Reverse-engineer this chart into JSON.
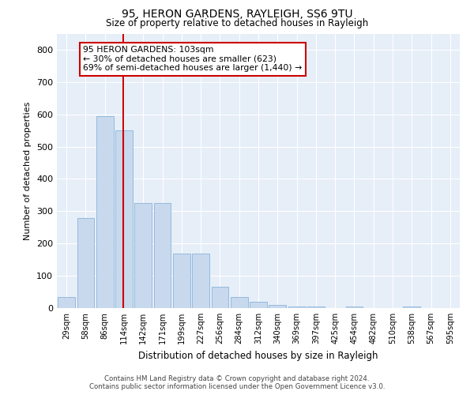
{
  "title1": "95, HERON GARDENS, RAYLEIGH, SS6 9TU",
  "title2": "Size of property relative to detached houses in Rayleigh",
  "xlabel": "Distribution of detached houses by size in Rayleigh",
  "ylabel": "Number of detached properties",
  "bar_color": "#c8d9ee",
  "bar_edge_color": "#8ab4d8",
  "background_color": "#e6eef8",
  "categories": [
    "29sqm",
    "58sqm",
    "86sqm",
    "114sqm",
    "142sqm",
    "171sqm",
    "199sqm",
    "227sqm",
    "256sqm",
    "284sqm",
    "312sqm",
    "340sqm",
    "369sqm",
    "397sqm",
    "425sqm",
    "454sqm",
    "482sqm",
    "510sqm",
    "538sqm",
    "567sqm",
    "595sqm"
  ],
  "values": [
    35,
    280,
    595,
    550,
    325,
    325,
    170,
    170,
    65,
    35,
    20,
    10,
    5,
    5,
    0,
    5,
    0,
    0,
    5,
    0,
    0
  ],
  "vline_x": 2.97,
  "vline_color": "#cc0000",
  "annotation_text_line1": "95 HERON GARDENS: 103sqm",
  "annotation_text_line2": "← 30% of detached houses are smaller (623)",
  "annotation_text_line3": "69% of semi-detached houses are larger (1,440) →",
  "footnote1": "Contains HM Land Registry data © Crown copyright and database right 2024.",
  "footnote2": "Contains public sector information licensed under the Open Government Licence v3.0.",
  "ylim": [
    0,
    850
  ],
  "yticks": [
    0,
    100,
    200,
    300,
    400,
    500,
    600,
    700,
    800
  ]
}
